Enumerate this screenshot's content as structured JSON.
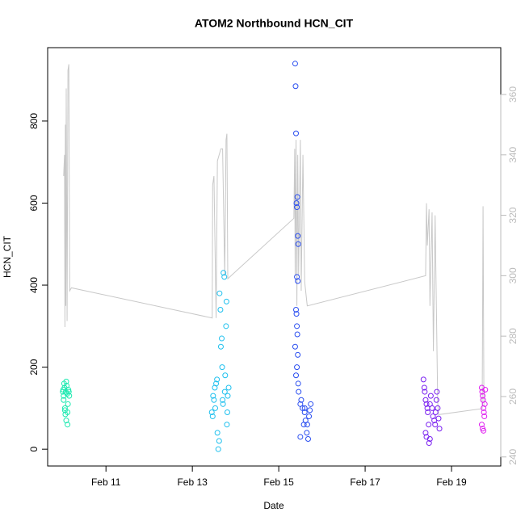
{
  "chart_data": {
    "type": "scatter",
    "title": "ATOM2 Northbound HCN_CIT",
    "x_label": "Date",
    "y_label": "HCN_CIT",
    "xlim": [
      9.65,
      20.14
    ],
    "ylim": [
      -41,
      979
    ],
    "y2lim": [
      237,
      375.5
    ],
    "xticks": [
      {
        "value": 11,
        "label": "Feb 11"
      },
      {
        "value": 13,
        "label": "Feb 13"
      },
      {
        "value": 15,
        "label": "Feb 15"
      },
      {
        "value": 17,
        "label": "Feb 17"
      },
      {
        "value": 19,
        "label": "Feb 19"
      }
    ],
    "yticks": [
      0,
      200,
      400,
      600,
      800
    ],
    "y2ticks": [
      240,
      260,
      280,
      300,
      320,
      340,
      360
    ],
    "series": [
      {
        "color": "#1de9b0",
        "x": [
          10.0,
          10.01,
          10.02,
          10.03,
          10.04,
          10.05,
          10.06,
          10.07,
          10.08,
          10.09,
          10.1,
          10.11,
          10.12,
          10.13,
          10.14,
          10.15,
          10.02,
          10.05,
          10.08,
          10.11
        ],
        "values": [
          140,
          145,
          130,
          160,
          150,
          95,
          85,
          140,
          70,
          155,
          135,
          60,
          110,
          145,
          140,
          130,
          120,
          100,
          165,
          90
        ]
      },
      {
        "color": "#1fc0ee",
        "x": [
          13.45,
          13.47,
          13.48,
          13.5,
          13.52,
          13.53,
          13.55,
          13.57,
          13.58,
          13.6,
          13.62,
          13.63,
          13.65,
          13.66,
          13.68,
          13.69,
          13.7,
          13.71,
          13.72,
          13.74,
          13.75,
          13.76,
          13.78,
          13.79,
          13.8,
          13.81,
          13.82,
          13.84
        ],
        "values": [
          90,
          80,
          130,
          120,
          150,
          100,
          160,
          170,
          40,
          0,
          20,
          380,
          340,
          250,
          270,
          200,
          120,
          110,
          430,
          420,
          140,
          180,
          300,
          360,
          60,
          90,
          130,
          150
        ]
      },
      {
        "color": "#2a4ef0",
        "x": [
          15.38,
          15.39,
          15.4,
          15.41,
          15.42,
          15.43,
          15.44,
          15.45,
          15.42,
          15.44,
          15.4,
          15.41,
          15.42,
          15.43,
          15.38,
          15.44,
          15.42,
          15.4,
          15.45,
          15.46,
          15.5,
          15.55,
          15.6,
          15.62,
          15.58,
          15.65,
          15.5,
          15.68,
          15.52,
          15.6,
          15.7,
          15.72,
          15.74,
          15.66
        ],
        "values": [
          940,
          885,
          770,
          600,
          590,
          615,
          520,
          500,
          420,
          410,
          340,
          330,
          300,
          280,
          250,
          230,
          200,
          180,
          160,
          140,
          110,
          100,
          90,
          70,
          60,
          40,
          30,
          25,
          120,
          100,
          80,
          95,
          110,
          60
        ]
      },
      {
        "color": "#7a20f0",
        "x": [
          18.35,
          18.37,
          18.38,
          18.4,
          18.42,
          18.44,
          18.45,
          18.47,
          18.4,
          18.42,
          18.48,
          18.5,
          18.52,
          18.55,
          18.57,
          18.6,
          18.62,
          18.63,
          18.65,
          18.66,
          18.68,
          18.7,
          18.72,
          18.5
        ],
        "values": [
          170,
          150,
          140,
          120,
          110,
          100,
          90,
          60,
          40,
          30,
          15,
          110,
          130,
          100,
          80,
          70,
          60,
          90,
          120,
          140,
          100,
          75,
          50,
          25
        ]
      },
      {
        "color": "#e020f0",
        "x": [
          19.7,
          19.71,
          19.72,
          19.73,
          19.74,
          19.75,
          19.76,
          19.7,
          19.72,
          19.74,
          19.77,
          19.78
        ],
        "values": [
          150,
          140,
          130,
          120,
          100,
          90,
          80,
          60,
          50,
          45,
          110,
          145
        ]
      },
      {
        "type": "line",
        "axis": "y2",
        "color": "#c8c8c8",
        "x": [
          10.02,
          10.04,
          10.05,
          10.06,
          10.07,
          10.08,
          10.1,
          10.12,
          10.14,
          10.16,
          10.2,
          13.46,
          13.47,
          13.5,
          13.55,
          13.58,
          13.62,
          13.66,
          13.7,
          13.75,
          13.78,
          13.8,
          13.82,
          15.35,
          15.37,
          15.38,
          15.4,
          15.42,
          15.44,
          15.46,
          15.5,
          15.52,
          15.56,
          15.6,
          15.66,
          18.4,
          18.42,
          18.44,
          18.48,
          18.5,
          18.55,
          18.58,
          18.62,
          18.68,
          18.7,
          19.71,
          19.73,
          19.75
        ],
        "values": [
          333,
          340,
          283,
          350,
          290,
          362,
          285,
          368,
          370,
          295,
          296,
          286,
          330,
          333,
          286,
          338,
          340,
          342,
          342,
          300,
          345,
          347,
          299,
          319,
          342,
          300,
          345,
          290,
          340,
          300,
          345,
          295,
          340,
          298,
          290,
          300,
          324,
          310,
          322,
          290,
          321,
          275,
          320,
          258,
          254,
          256,
          323,
          257
        ]
      }
    ]
  }
}
